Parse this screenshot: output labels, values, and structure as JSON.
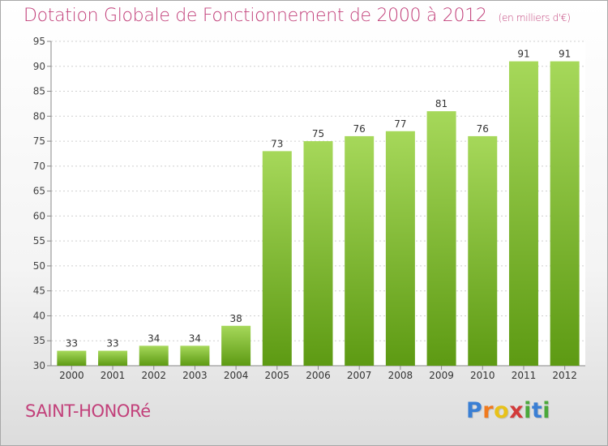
{
  "title": "Dotation Globale de Fonctionnement de 2000 à 2012",
  "unit": "(en milliers d'€)",
  "commune": "SAINT-HONORé",
  "logo": {
    "letters": [
      "P",
      "r",
      "o",
      "x",
      "i",
      "t",
      "i"
    ],
    "colors": [
      "#3a7fd4",
      "#f07a1e",
      "#e8c21a",
      "#d23a3a",
      "#4aa83a",
      "#3a7fd4",
      "#4aa83a"
    ]
  },
  "colors": {
    "bar_top": "#a6d85a",
    "bar_bottom": "#5d9a13",
    "text": "#c2407a"
  },
  "chart_data": {
    "type": "bar",
    "categories": [
      "2000",
      "2001",
      "2002",
      "2003",
      "2004",
      "2005",
      "2006",
      "2007",
      "2008",
      "2009",
      "2010",
      "2011",
      "2012"
    ],
    "values": [
      33,
      33,
      34,
      34,
      38,
      73,
      75,
      76,
      77,
      81,
      76,
      91,
      91
    ],
    "ylim": [
      30,
      95
    ],
    "yticks": [
      30,
      35,
      40,
      45,
      50,
      55,
      60,
      65,
      70,
      75,
      80,
      85,
      90,
      95
    ],
    "grid": true
  }
}
